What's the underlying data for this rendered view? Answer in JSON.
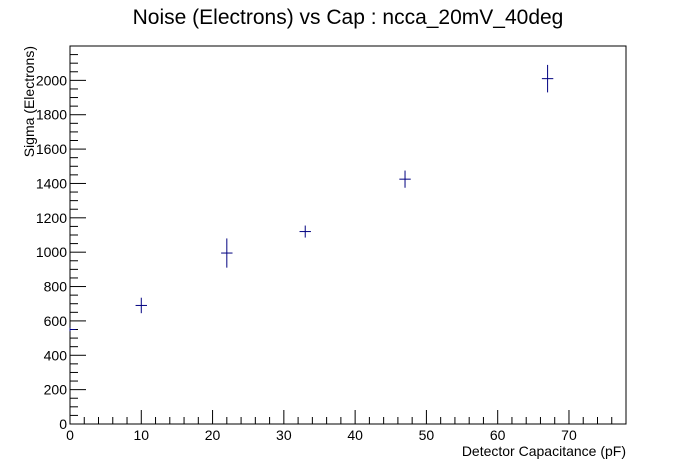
{
  "chart_data": {
    "type": "scatter",
    "title": "Noise (Electrons) vs Cap : ncca_20mV_40deg",
    "xlabel": "Detector Capacitance (pF)",
    "ylabel": "Sigma (Electrons)",
    "xlim": [
      0,
      78
    ],
    "ylim": [
      0,
      2200
    ],
    "xticks": [
      0,
      10,
      20,
      30,
      40,
      50,
      60,
      70
    ],
    "yticks": [
      0,
      200,
      400,
      600,
      800,
      1000,
      1200,
      1400,
      1600,
      1800,
      2000
    ],
    "grid": false,
    "marker_color": "#000080",
    "points": [
      {
        "x": 0,
        "y": 550,
        "xerr": 0.8,
        "yerr": 10
      },
      {
        "x": 10,
        "y": 690,
        "xerr": 0.8,
        "yerr": 45
      },
      {
        "x": 22,
        "y": 995,
        "xerr": 0.8,
        "yerr": 85
      },
      {
        "x": 33,
        "y": 1120,
        "xerr": 0.8,
        "yerr": 35
      },
      {
        "x": 47,
        "y": 1425,
        "xerr": 0.8,
        "yerr": 50
      },
      {
        "x": 67,
        "y": 2010,
        "xerr": 0.8,
        "yerr": 80
      }
    ]
  }
}
